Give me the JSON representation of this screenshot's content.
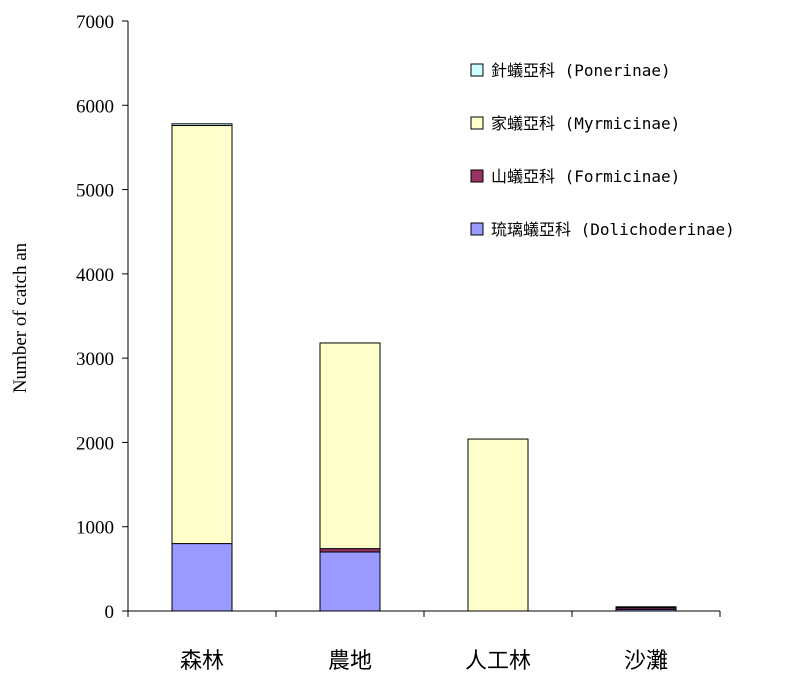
{
  "chart_data": {
    "type": "bar",
    "stacked": true,
    "categories": [
      "森林",
      "農地",
      "人工林",
      "沙灘"
    ],
    "ylabel": "Number of catch an",
    "ylim": [
      0,
      7000
    ],
    "yticks": [
      0,
      1000,
      2000,
      3000,
      4000,
      5000,
      6000,
      7000
    ],
    "grid": false,
    "legend_position": "top-right",
    "series": [
      {
        "name": "琉璃蟻亞科 (Dolichoderinae)",
        "color": "#9999ff",
        "values": [
          800,
          700,
          0,
          20
        ]
      },
      {
        "name": "山蟻亞科 (Formicinae)",
        "color": "#993366",
        "values": [
          0,
          40,
          0,
          20
        ]
      },
      {
        "name": "家蟻亞科 (Myrmicinae)",
        "color": "#ffffcc",
        "values": [
          4960,
          2440,
          2040,
          10
        ]
      },
      {
        "name": "針蟻亞科 (Ponerinae)",
        "color": "#ccffff",
        "values": [
          20,
          0,
          0,
          0
        ]
      }
    ]
  }
}
